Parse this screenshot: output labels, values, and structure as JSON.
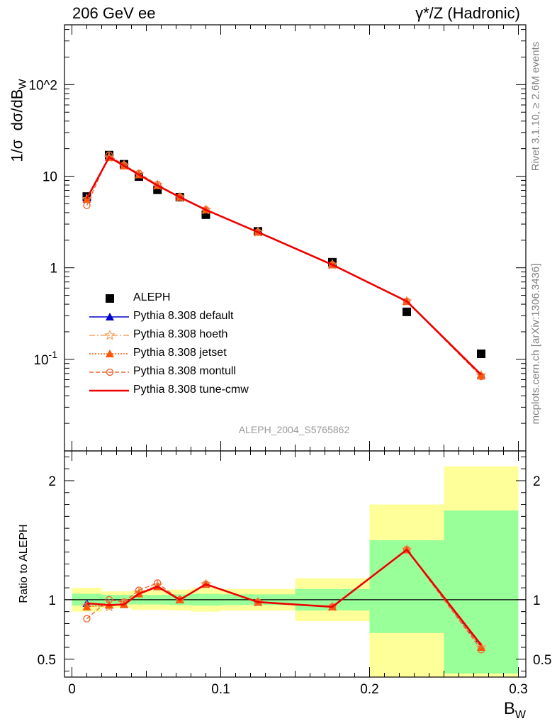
{
  "header": {
    "left": "206 GeV ee",
    "right": "γ*/Z (Hadronic)"
  },
  "side_labels": {
    "rivet": "Rivet 3.1.10, ≥ 2.6M events",
    "mcplots": "mcplots.cern.ch [arXiv:1306.3436]"
  },
  "analysis_id": "ALEPH_2004_S5765862",
  "colors": {
    "data": "#000000",
    "default": "#0000cc",
    "hoeth": "#f4a460",
    "jetset": "#ff5500",
    "montull": "#ee6633",
    "tune_cmw": "#ee0000",
    "band_inner": "#99ff99",
    "band_outer": "#ffff99"
  },
  "chart_data": [
    {
      "type": "line",
      "ylabel": "1/σ  dσ/dB_W",
      "yscale": "log",
      "ylim": [
        0.01,
        450
      ],
      "xlim": [
        -0.005,
        0.305
      ],
      "yticks": [
        0.1,
        1,
        10,
        100
      ],
      "ytick_labels": [
        "10^{-1}",
        "1",
        "10",
        "10^2"
      ],
      "data_series": {
        "name": "ALEPH",
        "x": [
          0.01,
          0.025,
          0.035,
          0.045,
          0.0575,
          0.0725,
          0.09,
          0.125,
          0.175,
          0.225,
          0.275
        ],
        "y": [
          6.0,
          17.0,
          13.5,
          9.9,
          7.1,
          5.9,
          3.8,
          2.5,
          1.15,
          0.33,
          0.115
        ]
      },
      "series": [
        {
          "name": "Pythia 8.308 default",
          "key": "default",
          "marker": "triangle",
          "x": [
            0.01,
            0.025,
            0.035,
            0.045,
            0.0575,
            0.0725,
            0.09,
            0.125,
            0.175,
            0.225,
            0.275
          ],
          "y": [
            5.8,
            16.2,
            13.0,
            10.4,
            7.9,
            5.9,
            4.3,
            2.45,
            1.08,
            0.43,
            0.068
          ]
        },
        {
          "name": "Pythia 8.308 hoeth",
          "key": "hoeth",
          "marker": "star",
          "x": [
            0.01,
            0.025,
            0.035,
            0.045,
            0.0575,
            0.0725,
            0.09,
            0.125,
            0.175,
            0.225,
            0.275
          ],
          "y": [
            5.6,
            16.0,
            13.1,
            10.5,
            8.0,
            5.9,
            4.3,
            2.45,
            1.08,
            0.43,
            0.067
          ]
        },
        {
          "name": "Pythia 8.308 jetset",
          "key": "jetset",
          "marker": "triangle",
          "x": [
            0.01,
            0.025,
            0.035,
            0.045,
            0.0575,
            0.0725,
            0.09,
            0.125,
            0.175,
            0.225,
            0.275
          ],
          "y": [
            5.6,
            16.1,
            13.0,
            10.4,
            7.9,
            5.9,
            4.3,
            2.45,
            1.08,
            0.43,
            0.066
          ]
        },
        {
          "name": "Pythia 8.308 montull",
          "key": "montull",
          "marker": "circle",
          "x": [
            0.01,
            0.025,
            0.035,
            0.045,
            0.0575,
            0.0725,
            0.09,
            0.125,
            0.175,
            0.225,
            0.275
          ],
          "y": [
            4.8,
            17.0,
            13.2,
            10.7,
            8.1,
            5.9,
            4.3,
            2.45,
            1.08,
            0.43,
            0.065
          ]
        },
        {
          "name": "Pythia 8.308 tune-cmw",
          "key": "tune_cmw",
          "marker": "none",
          "x": [
            0.01,
            0.025,
            0.035,
            0.045,
            0.0575,
            0.0725,
            0.09,
            0.125,
            0.175,
            0.225,
            0.275
          ],
          "y": [
            5.7,
            16.1,
            13.0,
            10.4,
            7.9,
            5.9,
            4.3,
            2.45,
            1.08,
            0.43,
            0.068
          ]
        }
      ]
    },
    {
      "type": "line",
      "ylabel": "Ratio to ALEPH",
      "xlabel": "B_W",
      "ylim": [
        0.35,
        2.25
      ],
      "xlim": [
        -0.005,
        0.305
      ],
      "yticks": [
        0.5,
        1,
        2
      ],
      "ytick_labels": [
        "0.5",
        "1",
        "2"
      ],
      "xticks": [
        0,
        0.1,
        0.2,
        0.3
      ],
      "xtick_labels": [
        "0",
        "0.1",
        "0.2",
        "0.3"
      ],
      "reference": 1,
      "bins": [
        {
          "lo": 0.0,
          "hi": 0.02,
          "inner": [
            0.95,
            1.05
          ],
          "outer": [
            0.9,
            1.1
          ]
        },
        {
          "lo": 0.02,
          "hi": 0.03,
          "inner": [
            0.96,
            1.04
          ],
          "outer": [
            0.93,
            1.07
          ]
        },
        {
          "lo": 0.03,
          "hi": 0.04,
          "inner": [
            0.96,
            1.04
          ],
          "outer": [
            0.93,
            1.07
          ]
        },
        {
          "lo": 0.04,
          "hi": 0.05,
          "inner": [
            0.96,
            1.04
          ],
          "outer": [
            0.915,
            1.08
          ]
        },
        {
          "lo": 0.05,
          "hi": 0.065,
          "inner": [
            0.96,
            1.04
          ],
          "outer": [
            0.915,
            1.08
          ]
        },
        {
          "lo": 0.065,
          "hi": 0.08,
          "inner": [
            0.955,
            1.045
          ],
          "outer": [
            0.91,
            1.085
          ]
        },
        {
          "lo": 0.08,
          "hi": 0.1,
          "inner": [
            0.95,
            1.05
          ],
          "outer": [
            0.9,
            1.1
          ]
        },
        {
          "lo": 0.1,
          "hi": 0.15,
          "inner": [
            0.955,
            1.045
          ],
          "outer": [
            0.91,
            1.09
          ]
        },
        {
          "lo": 0.15,
          "hi": 0.2,
          "inner": [
            0.91,
            1.09
          ],
          "outer": [
            0.82,
            1.18
          ]
        },
        {
          "lo": 0.2,
          "hi": 0.25,
          "inner": [
            0.72,
            1.5
          ],
          "outer": [
            0.35,
            1.8
          ]
        },
        {
          "lo": 0.25,
          "hi": 0.3,
          "inner": [
            0.38,
            1.75
          ],
          "outer": [
            0.35,
            2.12
          ]
        }
      ],
      "series": [
        {
          "name": "Pythia 8.308 default",
          "key": "default",
          "marker": "triangle",
          "x": [
            0.01,
            0.025,
            0.035,
            0.045,
            0.0575,
            0.0725,
            0.09,
            0.125,
            0.175,
            0.225,
            0.275
          ],
          "y": [
            0.97,
            0.955,
            0.96,
            1.05,
            1.11,
            1.0,
            1.13,
            0.98,
            0.94,
            1.42,
            0.6
          ]
        },
        {
          "name": "Pythia 8.308 hoeth",
          "key": "hoeth",
          "marker": "star",
          "x": [
            0.01,
            0.025,
            0.035,
            0.045,
            0.0575,
            0.0725,
            0.09,
            0.125,
            0.175,
            0.225,
            0.275
          ],
          "y": [
            0.95,
            0.94,
            0.97,
            1.06,
            1.12,
            1.0,
            1.13,
            0.98,
            0.94,
            1.42,
            0.6
          ]
        },
        {
          "name": "Pythia 8.308 jetset",
          "key": "jetset",
          "marker": "triangle",
          "x": [
            0.01,
            0.025,
            0.035,
            0.045,
            0.0575,
            0.0725,
            0.09,
            0.125,
            0.175,
            0.225,
            0.275
          ],
          "y": [
            0.94,
            0.955,
            0.96,
            1.05,
            1.11,
            1.0,
            1.13,
            0.98,
            0.94,
            1.42,
            0.6
          ]
        },
        {
          "name": "Pythia 8.308 montull",
          "key": "montull",
          "marker": "circle",
          "x": [
            0.01,
            0.025,
            0.035,
            0.045,
            0.0575,
            0.0725,
            0.09,
            0.125,
            0.175,
            0.225,
            0.275
          ],
          "y": [
            0.84,
            1.0,
            0.98,
            1.08,
            1.14,
            1.0,
            1.13,
            0.98,
            0.94,
            1.42,
            0.58
          ]
        },
        {
          "name": "Pythia 8.308 tune-cmw",
          "key": "tune_cmw",
          "marker": "none",
          "x": [
            0.01,
            0.025,
            0.035,
            0.045,
            0.0575,
            0.0725,
            0.09,
            0.125,
            0.175,
            0.225,
            0.275
          ],
          "y": [
            0.97,
            0.955,
            0.96,
            1.05,
            1.11,
            1.0,
            1.13,
            0.98,
            0.94,
            1.42,
            0.62
          ]
        }
      ]
    }
  ]
}
